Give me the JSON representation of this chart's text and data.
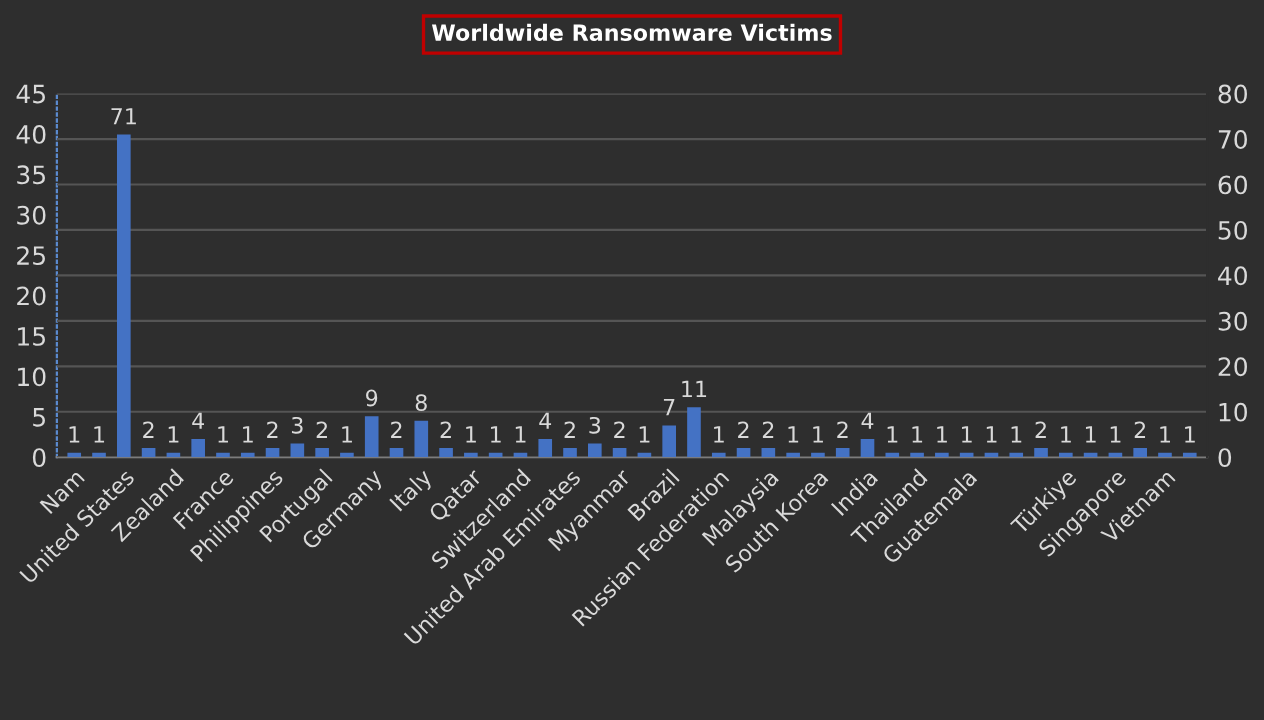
{
  "chart_data": {
    "type": "bar",
    "title": "Worldwide Ransomware Victims",
    "categories": [
      "Nam",
      null,
      "United States",
      null,
      "Zealand",
      null,
      "France",
      null,
      "Philippines",
      null,
      "Portugal",
      null,
      "Germany",
      null,
      "Italy",
      null,
      "Qatar",
      null,
      "Switzerland",
      null,
      "United Arab Emirates",
      null,
      "Myanmar",
      null,
      "Brazil",
      null,
      "Russian Federation",
      null,
      "Malaysia",
      null,
      "South Korea",
      null,
      "India",
      null,
      "Thailand",
      null,
      "Guatemala",
      null,
      null,
      null,
      "Türkiye",
      null,
      "Singapore",
      null,
      "Vietnam",
      null
    ],
    "series": [
      {
        "color": "#4472c4",
        "axis": "y2",
        "values": [
          1,
          1,
          71,
          2,
          1,
          4,
          1,
          1,
          2,
          3,
          2,
          1,
          9,
          2,
          8,
          2,
          1,
          1,
          1,
          4,
          2,
          3,
          2,
          1,
          7,
          11,
          1,
          2,
          2,
          1,
          1,
          2,
          4,
          1,
          1,
          1,
          1,
          1,
          1,
          2,
          1,
          1,
          1,
          2,
          1,
          1
        ]
      }
    ],
    "ylim": [
      0,
      45
    ],
    "yticks": [
      0,
      5,
      10,
      15,
      20,
      25,
      30,
      35,
      40,
      45
    ],
    "y2lim": [
      0,
      80
    ],
    "y2ticks": [
      0,
      10,
      20,
      30,
      40,
      50,
      60,
      70,
      80
    ],
    "grid": true,
    "data_labels": true,
    "legend": false
  }
}
